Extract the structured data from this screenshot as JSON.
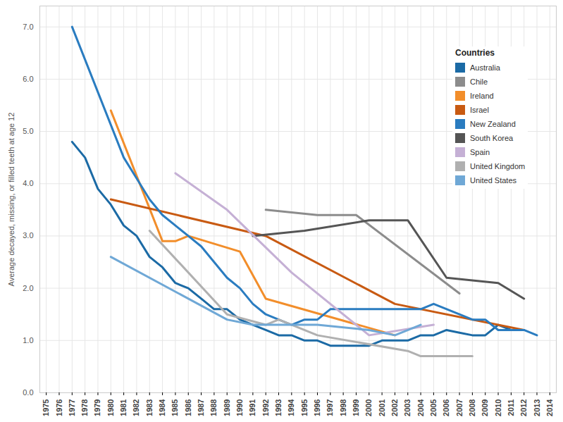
{
  "chart_data": {
    "type": "line",
    "y_label": "Average decayed, missing, or filled teeth at age 12",
    "legend_title": "Countries",
    "legend": "top-right",
    "grid": true,
    "xlim": [
      1974.5,
      2014.5
    ],
    "xticks": [
      1975,
      1976,
      1977,
      1978,
      1979,
      1980,
      1981,
      1982,
      1983,
      1984,
      1985,
      1986,
      1987,
      1988,
      1989,
      1990,
      1991,
      1992,
      1993,
      1994,
      1995,
      1996,
      1997,
      1998,
      1999,
      2000,
      2001,
      2002,
      2003,
      2004,
      2005,
      2006,
      2007,
      2008,
      2009,
      2010,
      2011,
      2012,
      2013,
      2014
    ],
    "ylim": [
      0,
      7.4
    ],
    "yticks": [
      {
        "value": 0,
        "label": "0.0"
      },
      {
        "value": 1,
        "label": "1.0"
      },
      {
        "value": 2,
        "label": "2.0"
      },
      {
        "value": 3,
        "label": "3.0"
      },
      {
        "value": 4,
        "label": "4.0"
      },
      {
        "value": 5,
        "label": "5.0"
      },
      {
        "value": 6,
        "label": "6.0"
      },
      {
        "value": 7,
        "label": "7.0"
      }
    ],
    "series": [
      {
        "name": "Australia",
        "color": "#1b6aa5",
        "x": [
          1977,
          1978,
          1979,
          1980,
          1981,
          1982,
          1983,
          1984,
          1985,
          1986,
          1987,
          1988,
          1989,
          1990,
          1991,
          1992,
          1993,
          1994,
          1995,
          1996,
          1997,
          1998,
          1999,
          2000,
          2001,
          2002,
          2003,
          2004,
          2005,
          2006,
          2007,
          2008,
          2009,
          2010,
          2011,
          2012
        ],
        "values": [
          4.8,
          4.5,
          3.9,
          3.6,
          3.2,
          3.0,
          2.6,
          2.4,
          2.1,
          2.0,
          1.8,
          1.6,
          1.6,
          1.4,
          1.3,
          1.2,
          1.1,
          1.1,
          1.0,
          1.0,
          0.9,
          0.9,
          0.9,
          0.9,
          1.0,
          1.0,
          1.0,
          1.1,
          1.1,
          1.2,
          1.15,
          1.1,
          1.1,
          1.3,
          1.2,
          1.2
        ]
      },
      {
        "name": "Chile",
        "color": "#8c8c8c",
        "x": [
          1992,
          1996,
          1999,
          2007
        ],
        "values": [
          3.5,
          3.4,
          3.4,
          1.9
        ]
      },
      {
        "name": "Ireland",
        "color": "#f28e2b",
        "x": [
          1980,
          1984,
          1985,
          1986,
          1990,
          1992,
          2002
        ],
        "values": [
          5.4,
          2.9,
          2.9,
          3.0,
          2.7,
          1.8,
          1.1
        ]
      },
      {
        "name": "Israel",
        "color": "#c85a12",
        "x": [
          1980,
          1992,
          2002,
          2012
        ],
        "values": [
          3.7,
          3.0,
          1.7,
          1.2
        ]
      },
      {
        "name": "New Zealand",
        "color": "#2a7cc0",
        "x": [
          1977,
          1981,
          1982,
          1983,
          1984,
          1985,
          1986,
          1987,
          1988,
          1989,
          1990,
          1991,
          1992,
          1993,
          1994,
          1995,
          1996,
          1997,
          2004,
          2005,
          2007,
          2008,
          2009,
          2010,
          2012,
          2013
        ],
        "values": [
          7.0,
          4.5,
          4.1,
          3.7,
          3.4,
          3.2,
          3.0,
          2.8,
          2.5,
          2.2,
          2.0,
          1.7,
          1.5,
          1.4,
          1.3,
          1.4,
          1.4,
          1.6,
          1.6,
          1.7,
          1.5,
          1.4,
          1.4,
          1.2,
          1.2,
          1.1
        ]
      },
      {
        "name": "South Korea",
        "color": "#555555",
        "x": [
          1991,
          1995,
          2000,
          2003,
          2006,
          2010,
          2012
        ],
        "values": [
          3.0,
          3.1,
          3.3,
          3.3,
          2.2,
          2.1,
          1.8
        ]
      },
      {
        "name": "Spain",
        "color": "#c5b0d5",
        "x": [
          1985,
          1989,
          1994,
          2000,
          2005
        ],
        "values": [
          4.2,
          3.5,
          2.3,
          1.1,
          1.3
        ]
      },
      {
        "name": "United Kingdom",
        "color": "#b0b0b0",
        "x": [
          1983,
          1989,
          1992,
          1993,
          1996,
          2003,
          2004,
          2008
        ],
        "values": [
          3.1,
          1.5,
          1.3,
          1.4,
          1.1,
          0.8,
          0.7,
          0.7
        ]
      },
      {
        "name": "United States",
        "color": "#6fa8d6",
        "x": [
          1980,
          1989,
          1991,
          1996,
          2000,
          2002,
          2004
        ],
        "values": [
          2.6,
          1.4,
          1.3,
          1.3,
          1.2,
          1.1,
          1.3
        ]
      }
    ]
  }
}
